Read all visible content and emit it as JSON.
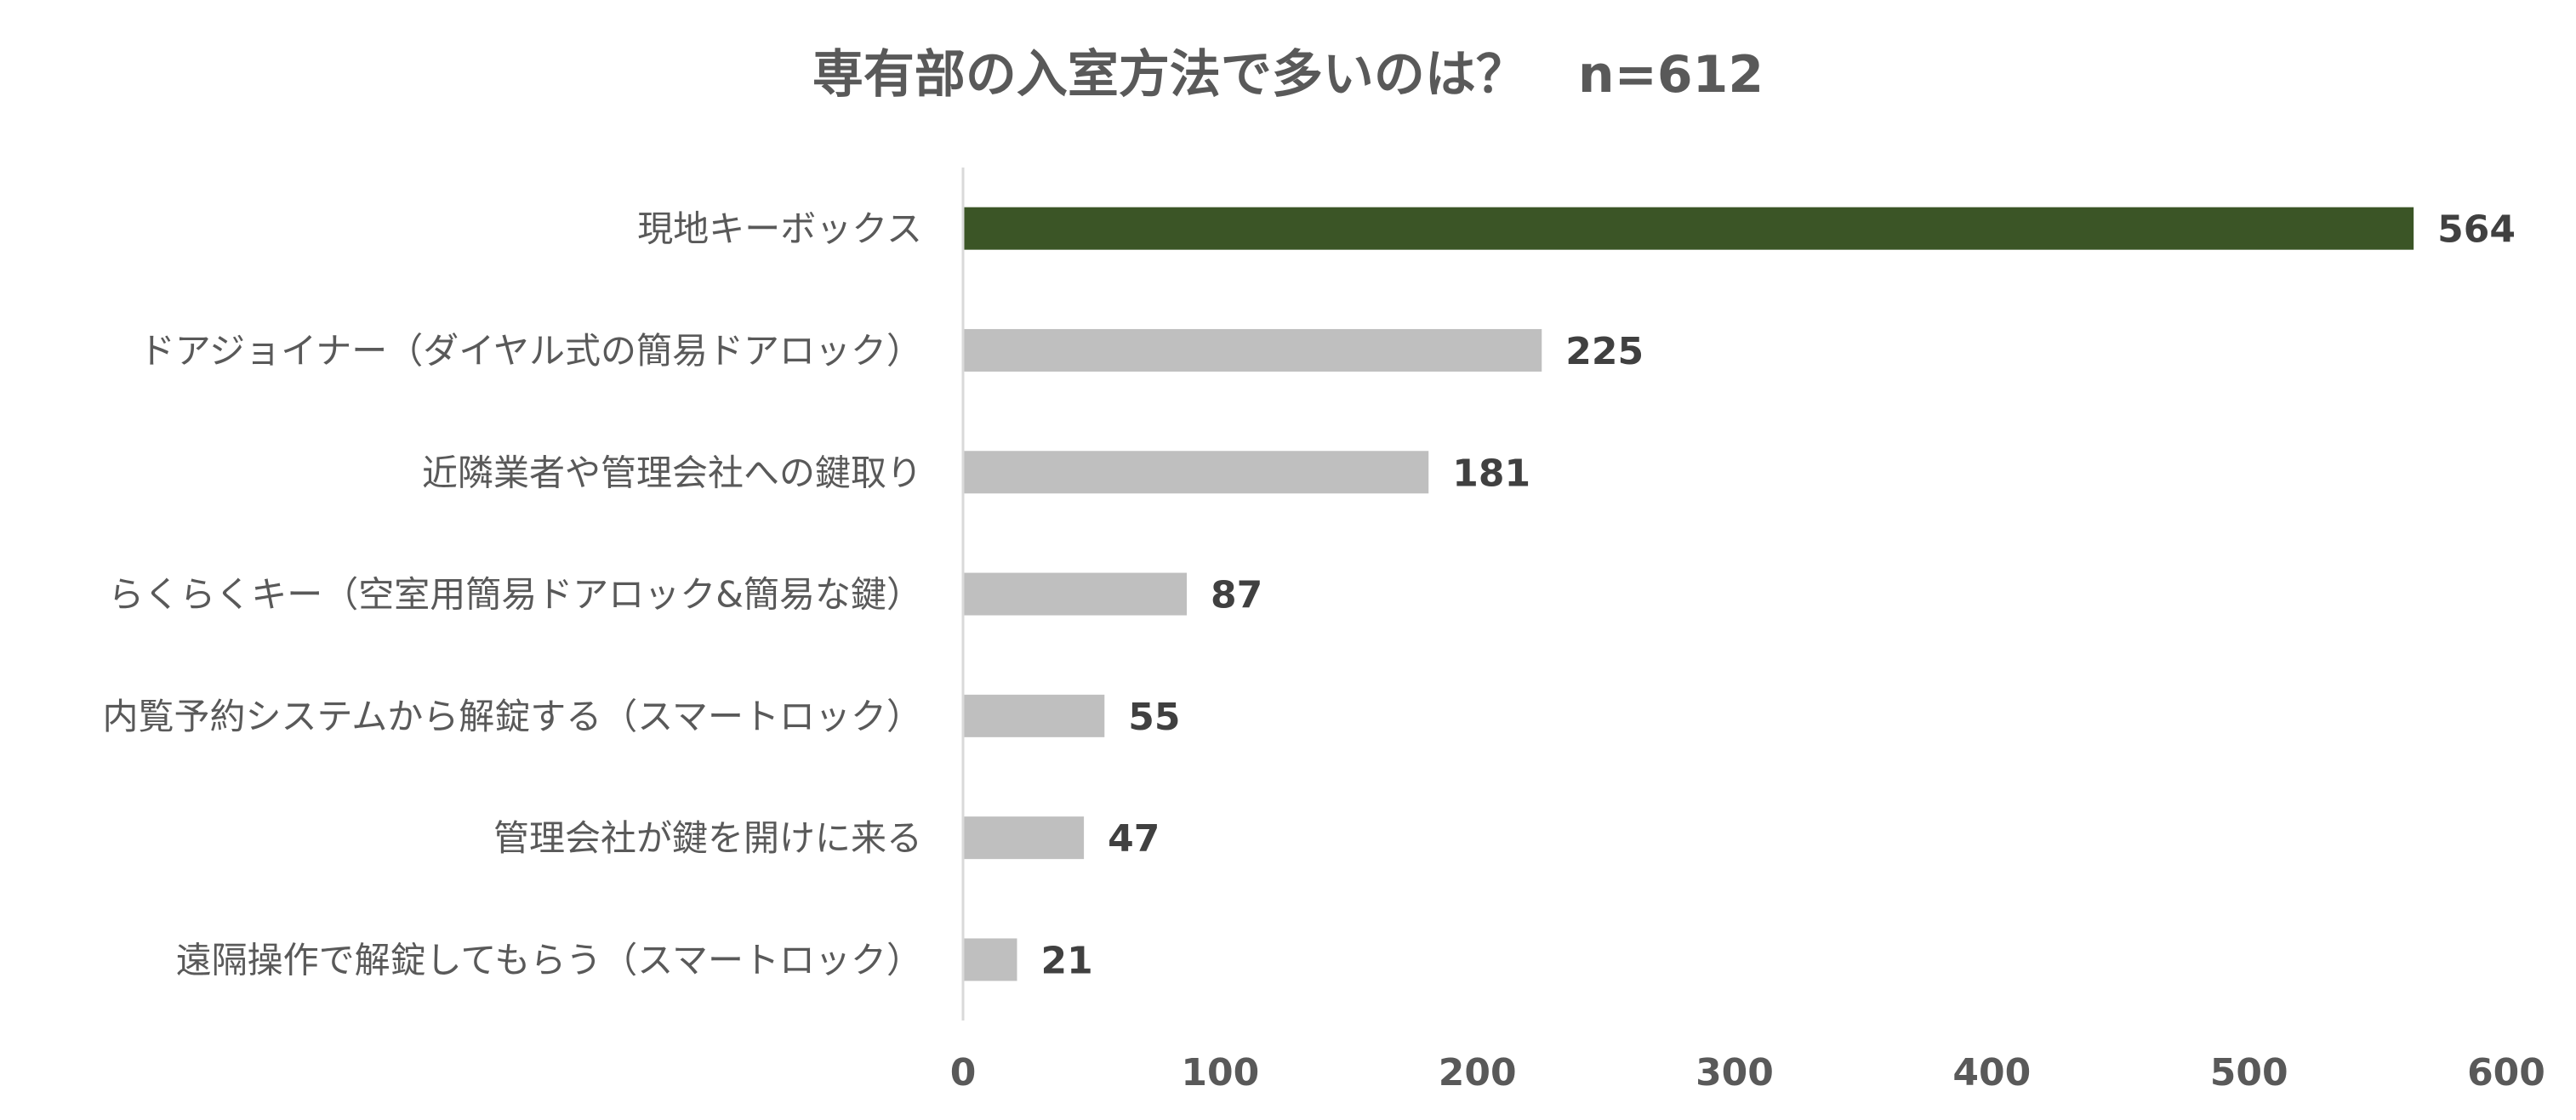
{
  "chart_data": {
    "type": "bar",
    "orientation": "horizontal",
    "title": "専有部の入室方法で多いのは？　n=612",
    "categories": [
      "現地キーボックス",
      "ドアジョイナー（ダイヤル式の簡易ドアロック）",
      "近隣業者や管理会社への鍵取り",
      "らくらくキー（空室用簡易ドアロック&簡易な鍵）",
      "内覧予約システムから解錠する（スマートロック）",
      "管理会社が鍵を開けに来る",
      "遠隔操作で解錠してもらう（スマートロック）"
    ],
    "values": [
      564,
      225,
      181,
      87,
      55,
      47,
      21
    ],
    "xlim": [
      0,
      600
    ],
    "x_ticks": [
      0,
      100,
      200,
      300,
      400,
      500,
      600
    ],
    "grid": false,
    "legend": "none",
    "highlight_color": "#3b5526",
    "bar_color": "#bfbfbf"
  }
}
